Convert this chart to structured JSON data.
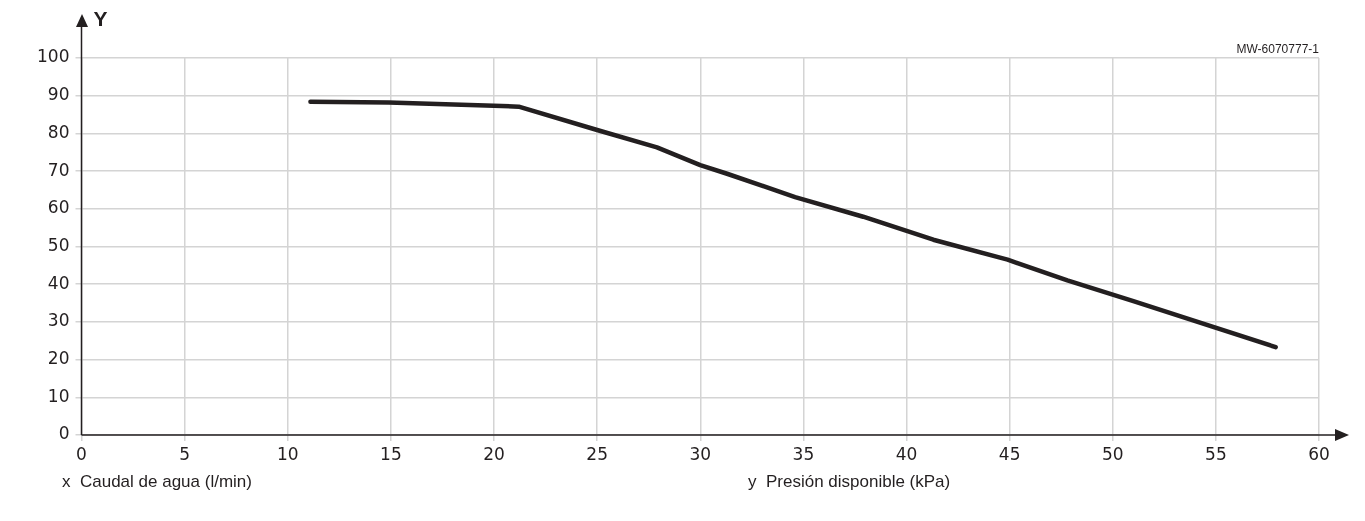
{
  "chart_data": {
    "type": "line",
    "ylabel": "Y",
    "annotations": [
      "x  Caudal de agua (l/min)",
      "y  Presión disponible (kPa)",
      "MW-6070777-1"
    ],
    "xlim": [
      0,
      60
    ],
    "xticks": [
      0,
      5,
      10,
      15,
      20,
      25,
      30,
      35,
      40,
      45,
      50,
      55,
      60
    ],
    "ylim": [
      0,
      100
    ],
    "yticks": [
      0,
      10,
      20,
      30,
      40,
      50,
      60,
      70,
      80,
      90,
      100
    ],
    "grid": true,
    "legend": false,
    "marker": "none",
    "line_style": "solid",
    "series": [
      {
        "color": "#231f20",
        "x": [
          11.1,
          14.9,
          21.2,
          25,
          27.9,
          30,
          31.3,
          34.6,
          37.9,
          41.3,
          44.9,
          47.8,
          51,
          57.9
        ],
        "values": [
          88.4,
          88.2,
          87.1,
          80.9,
          76.3,
          71.6,
          69.3,
          63.1,
          57.9,
          51.8,
          46.5,
          41,
          35.5,
          23.3
        ]
      }
    ]
  }
}
